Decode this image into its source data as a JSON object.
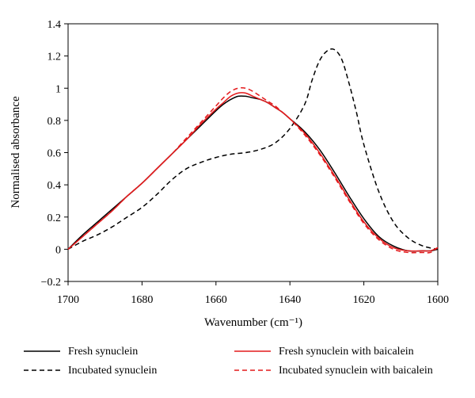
{
  "chart_data": {
    "type": "line",
    "title": "",
    "xlabel": "Wavenumber (cm⁻¹)",
    "ylabel": "Normalised absorbance",
    "xlim": [
      1700,
      1600
    ],
    "ylim": [
      -0.2,
      1.4
    ],
    "x_ticks": [
      1700,
      1680,
      1660,
      1640,
      1620,
      1600
    ],
    "y_ticks": [
      -0.2,
      0,
      0.2,
      0.4,
      0.6,
      0.8,
      1,
      1.2,
      1.4
    ],
    "x_tick_labels": [
      "1700",
      "1680",
      "1660",
      "1640",
      "1620",
      "1600"
    ],
    "y_tick_labels": [
      "−0.2",
      "0",
      "0.2",
      "0.4",
      "0.6",
      "0.8",
      "1",
      "1.2",
      "1.4"
    ],
    "grid": false,
    "legend_position": "bottom",
    "series": [
      {
        "name": "Fresh synuclein",
        "color": "#000000",
        "dash": "solid",
        "x": [
          1700,
          1696,
          1692,
          1688,
          1684,
          1680,
          1676,
          1672,
          1668,
          1664,
          1660,
          1658,
          1656,
          1654,
          1652,
          1650,
          1648,
          1646,
          1644,
          1642,
          1640,
          1636,
          1632,
          1628,
          1624,
          1620,
          1616,
          1612,
          1608,
          1604,
          1602,
          1600
        ],
        "y": [
          0.0,
          0.09,
          0.17,
          0.25,
          0.33,
          0.41,
          0.5,
          0.59,
          0.68,
          0.77,
          0.86,
          0.9,
          0.93,
          0.95,
          0.95,
          0.94,
          0.93,
          0.91,
          0.88,
          0.85,
          0.81,
          0.73,
          0.62,
          0.48,
          0.33,
          0.19,
          0.08,
          0.02,
          -0.01,
          -0.01,
          -0.01,
          0.0
        ]
      },
      {
        "name": "Incubated synuclein",
        "color": "#000000",
        "dash": "dashed",
        "x": [
          1700,
          1696,
          1692,
          1688,
          1684,
          1680,
          1676,
          1672,
          1668,
          1664,
          1660,
          1656,
          1652,
          1648,
          1644,
          1640,
          1636,
          1634,
          1632,
          1630,
          1628,
          1626,
          1624,
          1622,
          1620,
          1616,
          1612,
          1608,
          1604,
          1600
        ],
        "y": [
          0.0,
          0.05,
          0.09,
          0.14,
          0.2,
          0.26,
          0.34,
          0.43,
          0.5,
          0.54,
          0.57,
          0.59,
          0.6,
          0.62,
          0.66,
          0.75,
          0.9,
          1.05,
          1.17,
          1.23,
          1.24,
          1.18,
          1.03,
          0.85,
          0.65,
          0.36,
          0.17,
          0.07,
          0.02,
          0.0
        ]
      },
      {
        "name": "Fresh synuclein with baicalein",
        "color": "#e41a1c",
        "dash": "solid",
        "x": [
          1700,
          1696,
          1692,
          1688,
          1684,
          1680,
          1676,
          1672,
          1668,
          1664,
          1660,
          1658,
          1656,
          1654,
          1652,
          1650,
          1648,
          1646,
          1644,
          1642,
          1640,
          1636,
          1632,
          1628,
          1624,
          1620,
          1616,
          1612,
          1608,
          1604,
          1602,
          1600
        ],
        "y": [
          0.0,
          0.08,
          0.16,
          0.24,
          0.33,
          0.41,
          0.5,
          0.59,
          0.68,
          0.78,
          0.87,
          0.91,
          0.95,
          0.97,
          0.97,
          0.95,
          0.93,
          0.91,
          0.88,
          0.85,
          0.81,
          0.72,
          0.6,
          0.46,
          0.31,
          0.17,
          0.07,
          0.01,
          -0.01,
          -0.01,
          -0.01,
          0.01
        ]
      },
      {
        "name": "Incubated synuclein with baicalein",
        "color": "#e41a1c",
        "dash": "dashed",
        "x": [
          1700,
          1696,
          1692,
          1688,
          1684,
          1680,
          1676,
          1672,
          1668,
          1664,
          1660,
          1658,
          1656,
          1654,
          1652,
          1650,
          1648,
          1646,
          1644,
          1642,
          1640,
          1636,
          1632,
          1628,
          1624,
          1620,
          1616,
          1612,
          1608,
          1604,
          1602,
          1600
        ],
        "y": [
          0.0,
          0.08,
          0.16,
          0.24,
          0.33,
          0.41,
          0.5,
          0.59,
          0.69,
          0.79,
          0.89,
          0.94,
          0.98,
          1.0,
          1.0,
          0.98,
          0.95,
          0.92,
          0.89,
          0.85,
          0.81,
          0.71,
          0.59,
          0.45,
          0.3,
          0.16,
          0.06,
          0.0,
          -0.02,
          -0.02,
          -0.02,
          0.01
        ]
      }
    ]
  }
}
